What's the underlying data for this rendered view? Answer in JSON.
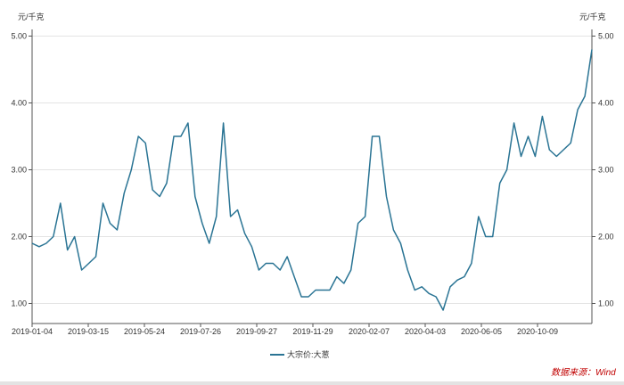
{
  "chart_data": {
    "type": "line",
    "y_unit_left": "元/千克",
    "y_unit_right": "元/千克",
    "ylim": [
      0.7,
      5.1
    ],
    "y_ticks": [
      1.0,
      2.0,
      3.0,
      4.0,
      5.0
    ],
    "y_tick_labels": [
      "1.00",
      "2.00",
      "3.00",
      "4.00",
      "5.00"
    ],
    "x_tick_labels": [
      "2019-01-04",
      "2019-03-15",
      "2019-05-24",
      "2019-07-26",
      "2019-09-27",
      "2019-11-29",
      "2020-02-07",
      "2020-04-03",
      "2020-06-05",
      "2020-10-09"
    ],
    "grid": "horizontal",
    "legend_position": "bottom-center",
    "series": [
      {
        "name": "大宗价:大葱",
        "color": "#2a7494",
        "values": [
          1.9,
          1.85,
          1.9,
          2.0,
          2.5,
          1.8,
          2.0,
          1.5,
          1.6,
          1.7,
          2.5,
          2.2,
          2.1,
          2.65,
          3.0,
          3.5,
          3.4,
          2.7,
          2.6,
          2.8,
          3.5,
          3.5,
          3.7,
          2.6,
          2.2,
          1.9,
          2.3,
          3.7,
          2.3,
          2.4,
          2.05,
          1.85,
          1.5,
          1.6,
          1.6,
          1.5,
          1.7,
          1.4,
          1.1,
          1.1,
          1.2,
          1.2,
          1.2,
          1.4,
          1.3,
          1.5,
          2.2,
          2.3,
          3.5,
          3.5,
          2.6,
          2.1,
          1.9,
          1.5,
          1.2,
          1.25,
          1.15,
          1.1,
          0.9,
          1.25,
          1.35,
          1.4,
          1.6,
          2.3,
          2.0,
          2.0,
          2.8,
          3.0,
          3.7,
          3.2,
          3.5,
          3.2,
          3.8,
          3.3,
          3.2,
          3.3,
          3.4,
          3.9,
          4.1,
          4.8
        ]
      }
    ]
  },
  "legend_label": "大宗价:大葱",
  "source": "数据来源：Wind"
}
